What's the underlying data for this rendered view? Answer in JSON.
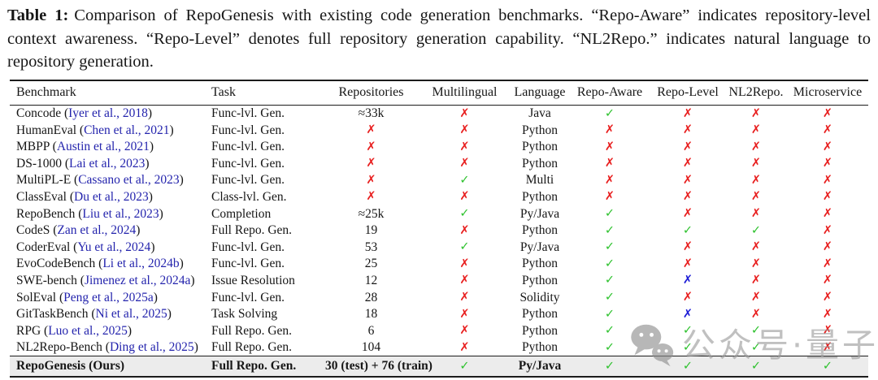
{
  "caption": {
    "label": "Table 1:",
    "text": "Comparison of RepoGenesis with existing code generation benchmarks. “Repo-Aware” indicates repository-level context awareness. “Repo-Level” denotes full repository generation capability. “NL2Repo.” indicates natural language to repository generation."
  },
  "table": {
    "columns": [
      "Benchmark",
      "Task",
      "Repositories",
      "Multilingual",
      "Language",
      "Repo-Aware",
      "Repo-Level",
      "NL2Repo.",
      "Microservice"
    ],
    "rows": [
      {
        "benchmark": "Concode",
        "cite": "Iyer et al., 2018",
        "task": "Func-lvl. Gen.",
        "repositories": "≈33k",
        "multilingual": "cross",
        "language": "Java",
        "repo_aware": "check",
        "repo_level": "cross",
        "nl2repo": "cross",
        "microservice": "cross"
      },
      {
        "benchmark": "HumanEval",
        "cite": "Chen et al., 2021",
        "task": "Func-lvl. Gen.",
        "repositories": "cross",
        "multilingual": "cross",
        "language": "Python",
        "repo_aware": "cross",
        "repo_level": "cross",
        "nl2repo": "cross",
        "microservice": "cross"
      },
      {
        "benchmark": "MBPP",
        "cite": "Austin et al., 2021",
        "task": "Func-lvl. Gen.",
        "repositories": "cross",
        "multilingual": "cross",
        "language": "Python",
        "repo_aware": "cross",
        "repo_level": "cross",
        "nl2repo": "cross",
        "microservice": "cross"
      },
      {
        "benchmark": "DS-1000",
        "cite": "Lai et al., 2023",
        "task": "Func-lvl. Gen.",
        "repositories": "cross",
        "multilingual": "cross",
        "language": "Python",
        "repo_aware": "cross",
        "repo_level": "cross",
        "nl2repo": "cross",
        "microservice": "cross"
      },
      {
        "benchmark": "MultiPL-E",
        "cite": "Cassano et al., 2023",
        "task": "Func-lvl. Gen.",
        "repositories": "cross",
        "multilingual": "check",
        "language": "Multi",
        "repo_aware": "cross",
        "repo_level": "cross",
        "nl2repo": "cross",
        "microservice": "cross"
      },
      {
        "benchmark": "ClassEval",
        "cite": "Du et al., 2023",
        "task": "Class-lvl. Gen.",
        "repositories": "cross",
        "multilingual": "cross",
        "language": "Python",
        "repo_aware": "cross",
        "repo_level": "cross",
        "nl2repo": "cross",
        "microservice": "cross"
      },
      {
        "benchmark": "RepoBench",
        "cite": "Liu et al., 2023",
        "task": "Completion",
        "repositories": "≈25k",
        "multilingual": "check",
        "language": "Py/Java",
        "repo_aware": "check",
        "repo_level": "cross",
        "nl2repo": "cross",
        "microservice": "cross"
      },
      {
        "benchmark": "CodeS",
        "cite": "Zan et al., 2024",
        "task": "Full Repo. Gen.",
        "repositories": "19",
        "multilingual": "cross",
        "language": "Python",
        "repo_aware": "check",
        "repo_level": "check",
        "nl2repo": "check",
        "microservice": "cross"
      },
      {
        "benchmark": "CoderEval",
        "cite": "Yu et al., 2024",
        "task": "Func-lvl. Gen.",
        "repositories": "53",
        "multilingual": "check",
        "language": "Py/Java",
        "repo_aware": "check",
        "repo_level": "cross",
        "nl2repo": "cross",
        "microservice": "cross"
      },
      {
        "benchmark": "EvoCodeBench",
        "cite": "Li et al., 2024b",
        "task": "Func-lvl. Gen.",
        "repositories": "25",
        "multilingual": "cross",
        "language": "Python",
        "repo_aware": "check",
        "repo_level": "cross",
        "nl2repo": "cross",
        "microservice": "cross"
      },
      {
        "benchmark": "SWE-bench",
        "cite": "Jimenez et al., 2024a",
        "task": "Issue Resolution",
        "repositories": "12",
        "multilingual": "cross",
        "language": "Python",
        "repo_aware": "check",
        "repo_level": "cross-blue",
        "nl2repo": "cross",
        "microservice": "cross"
      },
      {
        "benchmark": "SolEval",
        "cite": "Peng et al., 2025a",
        "task": "Func-lvl. Gen.",
        "repositories": "28",
        "multilingual": "cross",
        "language": "Solidity",
        "repo_aware": "check",
        "repo_level": "cross",
        "nl2repo": "cross",
        "microservice": "cross"
      },
      {
        "benchmark": "GitTaskBench",
        "cite": "Ni et al., 2025",
        "task": "Task Solving",
        "repositories": "18",
        "multilingual": "cross",
        "language": "Python",
        "repo_aware": "check",
        "repo_level": "cross-blue",
        "nl2repo": "cross",
        "microservice": "cross"
      },
      {
        "benchmark": "RPG",
        "cite": "Luo et al., 2025",
        "task": "Full Repo. Gen.",
        "repositories": "6",
        "multilingual": "cross",
        "language": "Python",
        "repo_aware": "check",
        "repo_level": "check",
        "nl2repo": "check",
        "microservice": "cross"
      },
      {
        "benchmark": "NL2Repo-Bench",
        "cite": "Ding et al., 2025",
        "task": "Full Repo. Gen.",
        "repositories": "104",
        "multilingual": "cross",
        "language": "Python",
        "repo_aware": "check",
        "repo_level": "check",
        "nl2repo": "check",
        "microservice": "cross"
      }
    ],
    "final_row": {
      "benchmark": "RepoGenesis (Ours)",
      "task": "Full Repo. Gen.",
      "repositories": "30 (test) + 76 (train)",
      "multilingual": "check",
      "language": "Py/Java",
      "repo_aware": "check",
      "repo_level": "check",
      "nl2repo": "check",
      "microservice": "check"
    }
  },
  "marks": {
    "check_glyph": "✓",
    "cross_glyph": "✗"
  },
  "colors": {
    "link": "#2424ad",
    "check": "#2fc22f",
    "cross": "#e81f1f",
    "cross_blue": "#1d1dd6",
    "final_row_bg": "#ececec",
    "watermark_text": "#9a9a9a",
    "watermark_icon": "#8c8c8c"
  },
  "watermark": {
    "icon": "wechat-icon",
    "text": "公众号·量子位"
  }
}
